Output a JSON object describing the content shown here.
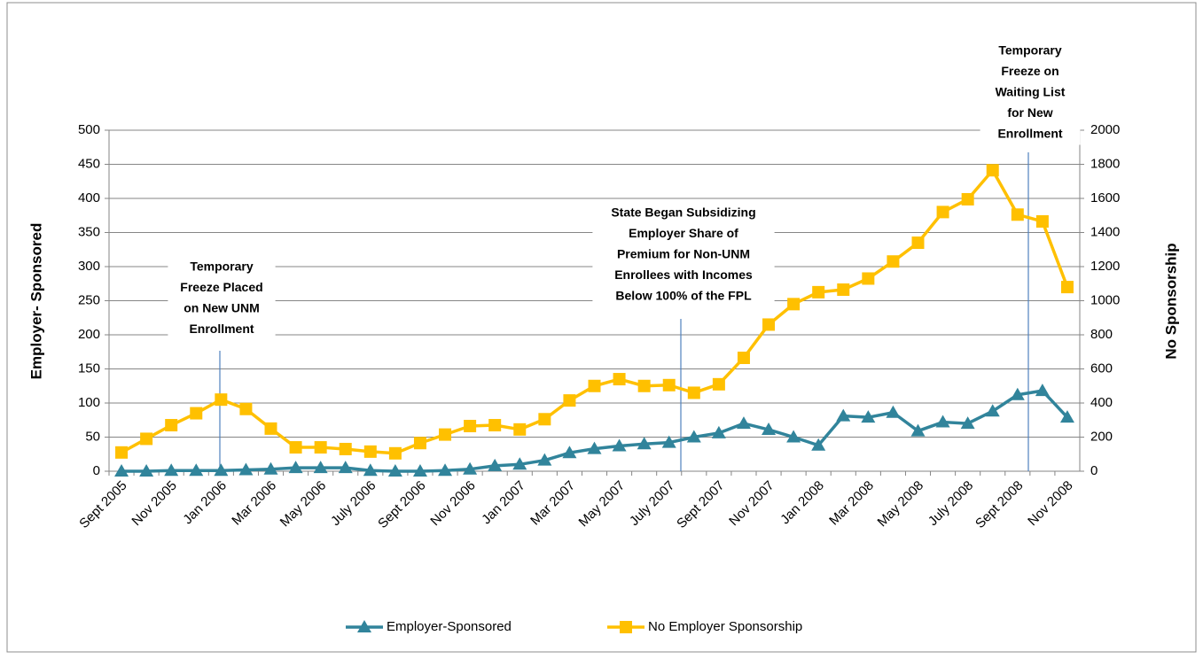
{
  "chart_data": {
    "type": "line",
    "categories": [
      "Sept 2005",
      null,
      "Nov 2005",
      null,
      "Jan 2006",
      null,
      "Mar 2006",
      null,
      "May 2006",
      null,
      "July 2006",
      null,
      "Sept 2006",
      null,
      "Nov 2006",
      null,
      "Jan 2007",
      null,
      "Mar 2007",
      null,
      "May 2007",
      null,
      "July 2007",
      null,
      "Sept 2007",
      null,
      "Nov 2007",
      null,
      "Jan 2008",
      null,
      "Mar 2008",
      null,
      "May 2008",
      null,
      "July 2008",
      null,
      "Sept 2008",
      null,
      "Nov 2008"
    ],
    "series": [
      {
        "name": "Employer-Sponsored",
        "color": "#31849b",
        "marker": "triangle",
        "values": [
          0,
          0,
          1,
          1,
          1,
          2,
          3,
          5,
          5,
          5,
          1,
          0,
          0,
          1,
          3,
          8,
          10,
          16,
          27,
          33,
          37,
          40,
          42,
          50,
          56,
          70,
          61,
          50,
          38,
          81,
          79,
          86,
          59,
          72,
          70,
          88,
          112,
          118,
          79
        ]
      },
      {
        "name": "No Employer Sponsorship",
        "color": "#ffc000",
        "marker": "square",
        "axis": "y2",
        "values": [
          110,
          190,
          270,
          340,
          420,
          365,
          250,
          140,
          140,
          130,
          115,
          105,
          165,
          215,
          265,
          270,
          245,
          305,
          415,
          500,
          540,
          500,
          505,
          460,
          510,
          665,
          860,
          980,
          1050,
          1065,
          1130,
          1230,
          1340,
          1520,
          1595,
          1765,
          1505,
          1465,
          1080
        ]
      }
    ],
    "ylabel": "Employer- Sponsored",
    "y2label": "No Sponsorship",
    "ylim": [
      0,
      500
    ],
    "yticks": [
      0,
      50,
      100,
      150,
      200,
      250,
      300,
      350,
      400,
      450,
      500
    ],
    "y2lim": [
      0,
      2000
    ],
    "y2ticks": [
      0,
      200,
      400,
      600,
      800,
      1000,
      1200,
      1400,
      1600,
      1800,
      2000
    ],
    "grid": true,
    "legend": "bottom",
    "annotations": [
      {
        "lines": [
          "Temporary",
          "Freeze Placed",
          "on New UNM",
          "Enrollment"
        ]
      },
      {
        "lines": [
          "State Began Subsidizing",
          "Employer Share of",
          "Premium for Non-UNM",
          "Enrollees with Incomes",
          "Below 100% of the FPL"
        ]
      },
      {
        "lines": [
          "Temporary",
          "Freeze on",
          "Waiting List",
          "for New",
          "Enrollment"
        ]
      }
    ]
  }
}
